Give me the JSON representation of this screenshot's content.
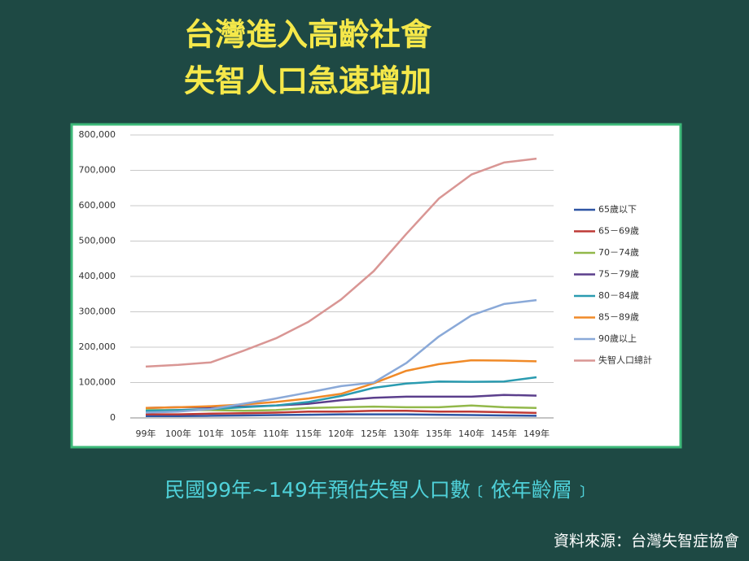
{
  "slide": {
    "title_lines": [
      "台灣進入高齡社會",
      "失智人口急速增加"
    ],
    "caption": "民國99年~149年預估失智人口數﹝依年齡層﹞",
    "source": "資料來源：台灣失智症協會"
  },
  "chart_data": {
    "type": "line",
    "categories": [
      "99年",
      "100年",
      "101年",
      "105年",
      "110年",
      "115年",
      "120年",
      "125年",
      "130年",
      "135年",
      "140年",
      "145年",
      "149年"
    ],
    "ylim": [
      0,
      800000
    ],
    "yticks": [
      0,
      {
        "value": 100000,
        "label": "100,000"
      },
      {
        "value": 200000,
        "label": "200,000"
      },
      {
        "value": 300000,
        "label": "300,000"
      },
      {
        "value": 400000,
        "label": "400,000"
      },
      {
        "value": 500000,
        "label": "500,000"
      },
      {
        "value": 600000,
        "label": "600,000"
      },
      {
        "value": 700000,
        "label": "700,000"
      },
      {
        "value": 800000,
        "label": "800,000"
      }
    ],
    "grid": true,
    "legend": "right",
    "series": [
      {
        "name": "65歲以下",
        "color": "#2e55a4",
        "values": [
          5000,
          5000,
          6000,
          7000,
          8000,
          9000,
          10000,
          10000,
          10000,
          9000,
          8000,
          7000,
          6000
        ]
      },
      {
        "name": "65－69歲",
        "color": "#be3a36",
        "values": [
          10000,
          10000,
          12000,
          13000,
          15000,
          18000,
          18000,
          20000,
          20000,
          18000,
          18000,
          16000,
          14000
        ]
      },
      {
        "name": "70－74歲",
        "color": "#92b84a",
        "values": [
          22000,
          22000,
          22000,
          20000,
          22000,
          28000,
          30000,
          32000,
          30000,
          30000,
          35000,
          30000,
          28000
        ]
      },
      {
        "name": "75－79歲",
        "color": "#5b3f8c",
        "values": [
          28000,
          30000,
          30000,
          32000,
          35000,
          40000,
          50000,
          57000,
          60000,
          60000,
          60000,
          65000,
          63000
        ]
      },
      {
        "name": "80－84歲",
        "color": "#2a9bb0",
        "values": [
          20000,
          22000,
          25000,
          30000,
          35000,
          45000,
          62000,
          85000,
          97000,
          103000,
          102000,
          103000,
          115000
        ]
      },
      {
        "name": "85－89歲",
        "color": "#f08a28",
        "values": [
          28000,
          30000,
          33000,
          38000,
          45000,
          55000,
          68000,
          98000,
          133000,
          152000,
          163000,
          162000,
          160000
        ]
      },
      {
        "name": "90歲以上",
        "color": "#8aa9d8",
        "values": [
          15000,
          18000,
          25000,
          40000,
          55000,
          72000,
          90000,
          100000,
          155000,
          230000,
          290000,
          322000,
          333000
        ]
      },
      {
        "name": "失智人口總計",
        "color": "#d99694",
        "values": [
          145000,
          150000,
          157000,
          190000,
          225000,
          272000,
          335000,
          415000,
          520000,
          620000,
          688000,
          722000,
          733000
        ]
      }
    ]
  }
}
